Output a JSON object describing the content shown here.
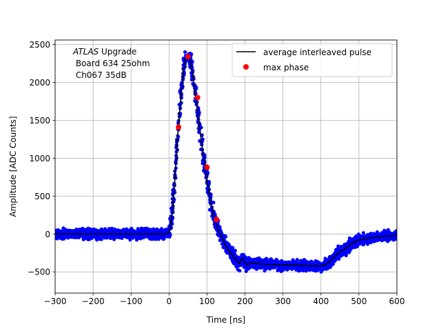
{
  "chart_data": {
    "type": "scatter",
    "title": "",
    "xlabel": "Time [ns]",
    "ylabel": "Amplitude [ADC Counts]",
    "xlim": [
      -300,
      600
    ],
    "ylim": [
      -780,
      2560
    ],
    "xticks": [
      -300,
      -200,
      -100,
      0,
      100,
      200,
      300,
      400,
      500,
      600
    ],
    "yticks": [
      -500,
      0,
      500,
      1000,
      1500,
      2000,
      2500
    ],
    "xtick_labels": [
      "−300",
      "−200",
      "−100",
      "0",
      "100",
      "200",
      "300",
      "400",
      "500",
      "600"
    ],
    "ytick_labels": [
      "−500",
      "0",
      "500",
      "1000",
      "1500",
      "2000",
      "2500"
    ],
    "grid": true,
    "legend_position": "top-right",
    "annotation": {
      "italic": "ATLAS",
      "line1_rest": " Upgrade",
      "line2": " Board 634 25ohm",
      "line3": " Ch067 35dB"
    },
    "series": [
      {
        "name": "",
        "kind": "scatter",
        "color": "#0000ff",
        "description": "individual samples (dense band around average pulse)",
        "noise_band": 55
      },
      {
        "name": "average interleaved pulse",
        "kind": "line",
        "color": "#000000",
        "x": [
          -300,
          -250,
          -200,
          -150,
          -100,
          -50,
          -10,
          0,
          5,
          10,
          15,
          20,
          25,
          30,
          35,
          40,
          45,
          50,
          55,
          60,
          65,
          70,
          75,
          80,
          85,
          90,
          95,
          100,
          105,
          110,
          115,
          120,
          125,
          130,
          140,
          150,
          160,
          170,
          180,
          185,
          190,
          195,
          200,
          205,
          210,
          215,
          220,
          230,
          240,
          250,
          275,
          300,
          325,
          350,
          375,
          400,
          410,
          420,
          430,
          440,
          450,
          460,
          470,
          480,
          490,
          500,
          520,
          540,
          560,
          580,
          600
        ],
        "y": [
          0,
          0,
          0,
          0,
          0,
          0,
          0,
          20,
          120,
          350,
          700,
          1100,
          1430,
          1750,
          2020,
          2230,
          2340,
          2360,
          2310,
          2180,
          2000,
          1810,
          1620,
          1420,
          1230,
          1050,
          880,
          710,
          560,
          420,
          300,
          200,
          120,
          50,
          -60,
          -160,
          -240,
          -300,
          -360,
          -390,
          -340,
          -330,
          -380,
          -410,
          -400,
          -380,
          -380,
          -390,
          -395,
          -400,
          -405,
          -410,
          -410,
          -415,
          -420,
          -420,
          -410,
          -380,
          -330,
          -280,
          -230,
          -210,
          -170,
          -130,
          -100,
          -80,
          -60,
          -45,
          -35,
          -25,
          -20
        ]
      },
      {
        "name": "max phase",
        "kind": "points",
        "color": "#ff0000",
        "x": [
          25,
          50,
          75,
          100,
          125
        ],
        "y": [
          1410,
          2340,
          1800,
          880,
          190
        ]
      }
    ]
  }
}
